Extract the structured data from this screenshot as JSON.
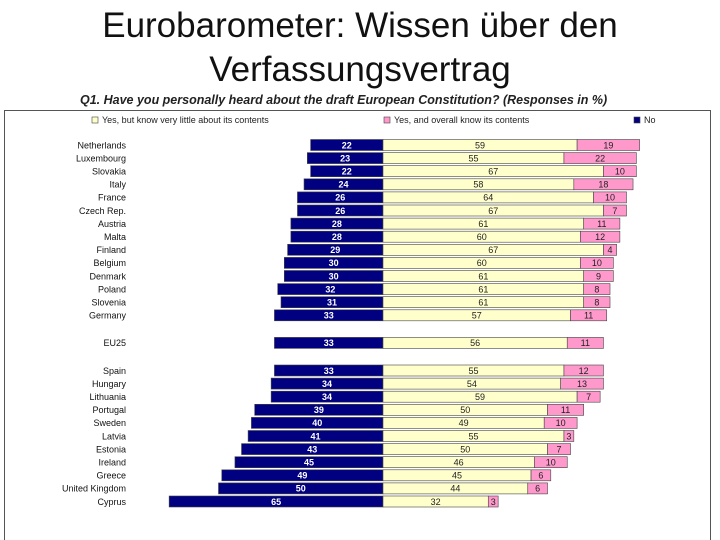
{
  "slide": {
    "title_line1": "Eurobarometer: Wissen über den",
    "title_line2": "Verfassungsvertrag"
  },
  "chart_data": {
    "type": "bar",
    "stacked": true,
    "orientation": "horizontal",
    "title": "Q1. Have you personally heard about the draft European Constitution? (Responses in %)",
    "legend_position": "top",
    "colors": {
      "no": "#000080",
      "little": "#ffffcc",
      "overall": "#ff99cc",
      "border": "#444444"
    },
    "series": [
      {
        "key": "little",
        "name": "Yes, but know  very little about its contents"
      },
      {
        "key": "overall",
        "name": "Yes, and overall know  its contents"
      },
      {
        "key": "no",
        "name": "No"
      }
    ],
    "rows": [
      {
        "label": "Netherlands",
        "no": 22,
        "little": 59,
        "overall": 19,
        "gap_after": false
      },
      {
        "label": "Luxembourg",
        "no": 23,
        "little": 55,
        "overall": 22,
        "gap_after": false
      },
      {
        "label": "Slovakia",
        "no": 22,
        "little": 67,
        "overall": 10,
        "gap_after": false
      },
      {
        "label": "Italy",
        "no": 24,
        "little": 58,
        "overall": 18,
        "gap_after": false
      },
      {
        "label": "France",
        "no": 26,
        "little": 64,
        "overall": 10,
        "gap_after": false
      },
      {
        "label": "Czech Rep.",
        "no": 26,
        "little": 67,
        "overall": 7,
        "gap_after": false
      },
      {
        "label": "Austria",
        "no": 28,
        "little": 61,
        "overall": 11,
        "gap_after": false
      },
      {
        "label": "Malta",
        "no": 28,
        "little": 60,
        "overall": 12,
        "gap_after": false
      },
      {
        "label": "Finland",
        "no": 29,
        "little": 67,
        "overall": 4,
        "gap_after": false
      },
      {
        "label": "Belgium",
        "no": 30,
        "little": 60,
        "overall": 10,
        "gap_after": false
      },
      {
        "label": "Denmark",
        "no": 30,
        "little": 61,
        "overall": 9,
        "gap_after": false
      },
      {
        "label": "Poland",
        "no": 32,
        "little": 61,
        "overall": 8,
        "gap_after": false
      },
      {
        "label": "Slovenia",
        "no": 31,
        "little": 61,
        "overall": 8,
        "gap_after": false
      },
      {
        "label": "Germany",
        "no": 33,
        "little": 57,
        "overall": 11,
        "gap_after": true
      },
      {
        "label": "EU25",
        "no": 33,
        "little": 56,
        "overall": 11,
        "gap_after": true
      },
      {
        "label": "Spain",
        "no": 33,
        "little": 55,
        "overall": 12,
        "gap_after": false
      },
      {
        "label": "Hungary",
        "no": 34,
        "little": 54,
        "overall": 13,
        "gap_after": false
      },
      {
        "label": "Lithuania",
        "no": 34,
        "little": 59,
        "overall": 7,
        "gap_after": false
      },
      {
        "label": "Portugal",
        "no": 39,
        "little": 50,
        "overall": 11,
        "gap_after": false
      },
      {
        "label": "Sweden",
        "no": 40,
        "little": 49,
        "overall": 10,
        "gap_after": false
      },
      {
        "label": "Latvia",
        "no": 41,
        "little": 55,
        "overall": 3,
        "gap_after": false
      },
      {
        "label": "Estonia",
        "no": 43,
        "little": 50,
        "overall": 7,
        "gap_after": false
      },
      {
        "label": "Ireland",
        "no": 45,
        "little": 46,
        "overall": 10,
        "gap_after": false
      },
      {
        "label": "Greece",
        "no": 49,
        "little": 45,
        "overall": 6,
        "gap_after": false
      },
      {
        "label": "United Kingdom",
        "no": 50,
        "little": 44,
        "overall": 6,
        "gap_after": false
      },
      {
        "label": "Cyprus",
        "no": 65,
        "little": 32,
        "overall": 3,
        "gap_after": false
      }
    ]
  }
}
